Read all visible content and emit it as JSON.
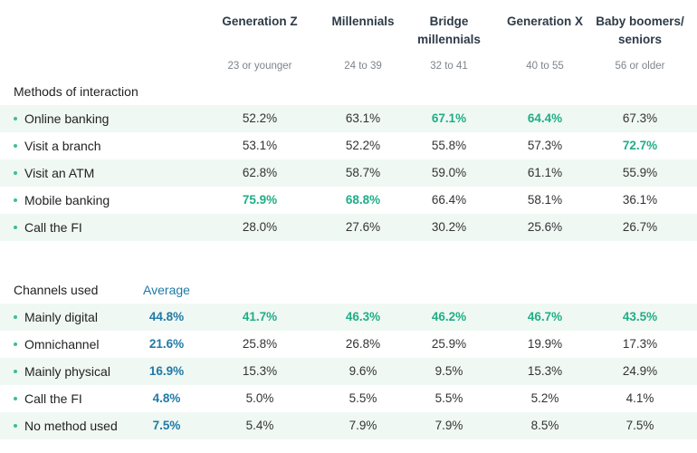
{
  "generations": [
    {
      "name": "Generation Z",
      "age": "23 or younger"
    },
    {
      "name": "Millennials",
      "age": "24 to 39"
    },
    {
      "name": "Bridge\nmillennials",
      "age": "32 to 41"
    },
    {
      "name": "Generation X",
      "age": "40 to 55"
    },
    {
      "name": "Baby boomers/\nseniors",
      "age": "56 or older"
    }
  ],
  "colors": {
    "highlight": "#1fae86",
    "average": "#1f7aa6",
    "row_shade": "#f0f8f4",
    "bullet": "#3bbf98"
  },
  "chart_data": [
    {
      "type": "table",
      "title": "Methods of interaction",
      "columns": [
        "Generation Z",
        "Millennials",
        "Bridge millennials",
        "Generation X",
        "Baby boomers/ seniors"
      ],
      "rows": [
        {
          "label": "Online banking",
          "values": [
            "52.2%",
            "63.1%",
            "67.1%",
            "64.4%",
            "67.3%"
          ],
          "highlight": [
            false,
            false,
            true,
            true,
            false
          ]
        },
        {
          "label": "Visit a branch",
          "values": [
            "53.1%",
            "52.2%",
            "55.8%",
            "57.3%",
            "72.7%"
          ],
          "highlight": [
            false,
            false,
            false,
            false,
            true
          ]
        },
        {
          "label": "Visit an ATM",
          "values": [
            "62.8%",
            "58.7%",
            "59.0%",
            "61.1%",
            "55.9%"
          ],
          "highlight": [
            false,
            false,
            false,
            false,
            false
          ]
        },
        {
          "label": "Mobile banking",
          "values": [
            "75.9%",
            "68.8%",
            "66.4%",
            "58.1%",
            "36.1%"
          ],
          "highlight": [
            true,
            true,
            false,
            false,
            false
          ]
        },
        {
          "label": "Call the FI",
          "values": [
            "28.0%",
            "27.6%",
            "30.2%",
            "25.6%",
            "26.7%"
          ],
          "highlight": [
            false,
            false,
            false,
            false,
            false
          ]
        }
      ]
    },
    {
      "type": "table",
      "title": "Channels used",
      "average_label": "Average",
      "columns": [
        "Generation Z",
        "Millennials",
        "Bridge millennials",
        "Generation X",
        "Baby boomers/ seniors"
      ],
      "rows": [
        {
          "label": "Mainly digital",
          "average": "44.8%",
          "values": [
            "41.7%",
            "46.3%",
            "46.2%",
            "46.7%",
            "43.5%"
          ],
          "highlight": [
            true,
            true,
            true,
            true,
            true
          ]
        },
        {
          "label": "Omnichannel",
          "average": "21.6%",
          "values": [
            "25.8%",
            "26.8%",
            "25.9%",
            "19.9%",
            "17.3%"
          ],
          "highlight": [
            false,
            false,
            false,
            false,
            false
          ]
        },
        {
          "label": "Mainly physical",
          "average": "16.9%",
          "values": [
            "15.3%",
            "9.6%",
            "9.5%",
            "15.3%",
            "24.9%"
          ],
          "highlight": [
            false,
            false,
            false,
            false,
            false
          ]
        },
        {
          "label": "Call the FI",
          "average": "4.8%",
          "values": [
            "5.0%",
            "5.5%",
            "5.5%",
            "5.2%",
            "4.1%"
          ],
          "highlight": [
            false,
            false,
            false,
            false,
            false
          ]
        },
        {
          "label": "No method used",
          "average": "7.5%",
          "values": [
            "5.4%",
            "7.9%",
            "7.9%",
            "8.5%",
            "7.5%"
          ],
          "highlight": [
            false,
            false,
            false,
            false,
            false
          ]
        }
      ]
    }
  ]
}
